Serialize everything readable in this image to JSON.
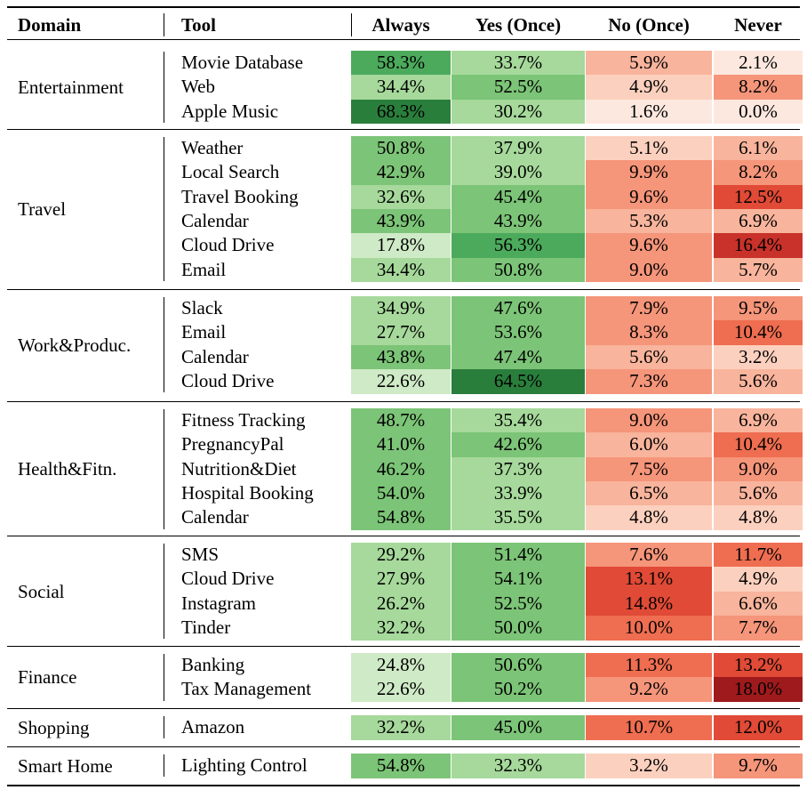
{
  "headers": {
    "domain": "Domain",
    "tool": "Tool",
    "always": "Always",
    "yes_once": "Yes (Once)",
    "no_once": "No (Once)",
    "never": "Never"
  },
  "groups": [
    {
      "domain": "Entertainment",
      "rows": [
        {
          "tool": "Movie Database",
          "always": "58.3%",
          "yes_once": "33.7%",
          "no_once": "5.9%",
          "never": "2.1%"
        },
        {
          "tool": "Web",
          "always": "34.4%",
          "yes_once": "52.5%",
          "no_once": "4.9%",
          "never": "8.2%"
        },
        {
          "tool": "Apple Music",
          "always": "68.3%",
          "yes_once": "30.2%",
          "no_once": "1.6%",
          "never": "0.0%"
        }
      ]
    },
    {
      "domain": "Travel",
      "rows": [
        {
          "tool": "Weather",
          "always": "50.8%",
          "yes_once": "37.9%",
          "no_once": "5.1%",
          "never": "6.1%"
        },
        {
          "tool": "Local Search",
          "always": "42.9%",
          "yes_once": "39.0%",
          "no_once": "9.9%",
          "never": "8.2%"
        },
        {
          "tool": "Travel Booking",
          "always": "32.6%",
          "yes_once": "45.4%",
          "no_once": "9.6%",
          "never": "12.5%"
        },
        {
          "tool": "Calendar",
          "always": "43.9%",
          "yes_once": "43.9%",
          "no_once": "5.3%",
          "never": "6.9%"
        },
        {
          "tool": "Cloud Drive",
          "always": "17.8%",
          "yes_once": "56.3%",
          "no_once": "9.6%",
          "never": "16.4%"
        },
        {
          "tool": "Email",
          "always": "34.4%",
          "yes_once": "50.8%",
          "no_once": "9.0%",
          "never": "5.7%"
        }
      ]
    },
    {
      "domain": "Work&Produc.",
      "rows": [
        {
          "tool": "Slack",
          "always": "34.9%",
          "yes_once": "47.6%",
          "no_once": "7.9%",
          "never": "9.5%"
        },
        {
          "tool": "Email",
          "always": "27.7%",
          "yes_once": "53.6%",
          "no_once": "8.3%",
          "never": "10.4%"
        },
        {
          "tool": "Calendar",
          "always": "43.8%",
          "yes_once": "47.4%",
          "no_once": "5.6%",
          "never": "3.2%"
        },
        {
          "tool": "Cloud Drive",
          "always": "22.6%",
          "yes_once": "64.5%",
          "no_once": "7.3%",
          "never": "5.6%"
        }
      ]
    },
    {
      "domain": "Health&Fitn.",
      "rows": [
        {
          "tool": "Fitness Tracking",
          "always": "48.7%",
          "yes_once": "35.4%",
          "no_once": "9.0%",
          "never": "6.9%"
        },
        {
          "tool": "PregnancyPal",
          "always": "41.0%",
          "yes_once": "42.6%",
          "no_once": "6.0%",
          "never": "10.4%"
        },
        {
          "tool": "Nutrition&Diet",
          "always": "46.2%",
          "yes_once": "37.3%",
          "no_once": "7.5%",
          "never": "9.0%"
        },
        {
          "tool": "Hospital Booking",
          "always": "54.0%",
          "yes_once": "33.9%",
          "no_once": "6.5%",
          "never": "5.6%"
        },
        {
          "tool": "Calendar",
          "always": "54.8%",
          "yes_once": "35.5%",
          "no_once": "4.8%",
          "never": "4.8%"
        }
      ]
    },
    {
      "domain": "Social",
      "rows": [
        {
          "tool": "SMS",
          "always": "29.2%",
          "yes_once": "51.4%",
          "no_once": "7.6%",
          "never": "11.7%"
        },
        {
          "tool": "Cloud Drive",
          "always": "27.9%",
          "yes_once": "54.1%",
          "no_once": "13.1%",
          "never": "4.9%"
        },
        {
          "tool": "Instagram",
          "always": "26.2%",
          "yes_once": "52.5%",
          "no_once": "14.8%",
          "never": "6.6%"
        },
        {
          "tool": "Tinder",
          "always": "32.2%",
          "yes_once": "50.0%",
          "no_once": "10.0%",
          "never": "7.7%"
        }
      ]
    },
    {
      "domain": "Finance",
      "rows": [
        {
          "tool": "Banking",
          "always": "24.8%",
          "yes_once": "50.6%",
          "no_once": "11.3%",
          "never": "13.2%"
        },
        {
          "tool": "Tax Management",
          "always": "22.6%",
          "yes_once": "50.2%",
          "no_once": "9.2%",
          "never": "18.0%"
        }
      ]
    },
    {
      "domain": "Shopping",
      "rows": [
        {
          "tool": "Amazon",
          "always": "32.2%",
          "yes_once": "45.0%",
          "no_once": "10.7%",
          "never": "12.0%"
        }
      ]
    },
    {
      "domain": "Smart Home",
      "rows": [
        {
          "tool": "Lighting Control",
          "always": "54.8%",
          "yes_once": "32.3%",
          "no_once": "3.2%",
          "never": "9.7%"
        }
      ]
    }
  ]
}
